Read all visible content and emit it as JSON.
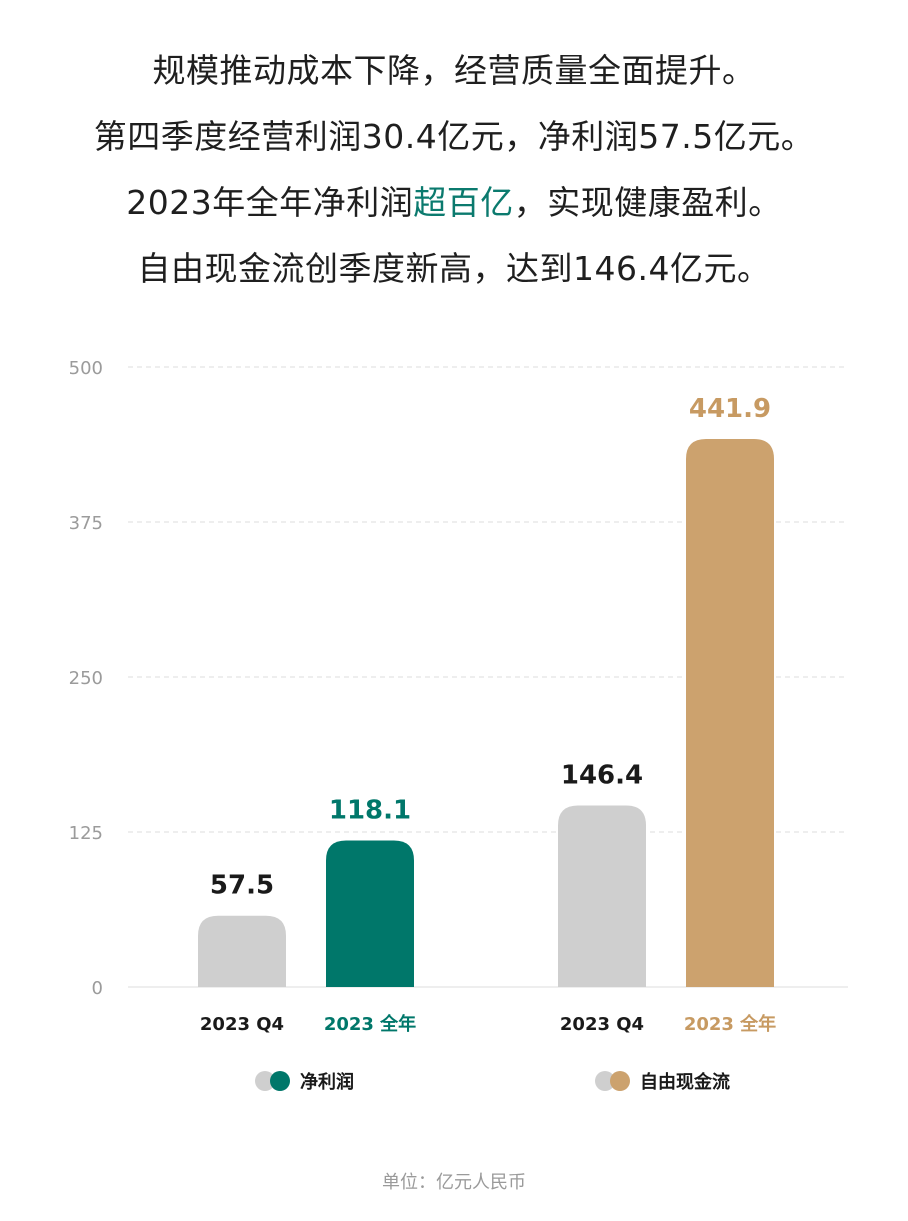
{
  "headline": {
    "line1": "规模推动成本下降，经营质量全面提升。",
    "line2": "第四季度经营利润30.4亿元，净利润57.5亿元。",
    "line3_pre": "2023年全年净利润",
    "line3_highlight": "超百亿",
    "line3_post": "，实现健康盈利。",
    "line4": "自由现金流创季度新高，达到146.4亿元。"
  },
  "colors": {
    "gray": "#cfcfcf",
    "teal": "#00776a",
    "gold": "#cca26e",
    "grid": "#e3e3e3",
    "axis_text": "#9b9b9b",
    "highlight": "#0b7a6e"
  },
  "chart_data": {
    "type": "bar",
    "ylim": [
      0,
      500
    ],
    "yticks": [
      "0",
      "125",
      "250",
      "375",
      "500"
    ],
    "grid": true,
    "legend_placement": "bottom",
    "groups": [
      {
        "legend": "净利润",
        "bars": [
          {
            "category": "2023 Q4",
            "value": 57.5,
            "label": "57.5",
            "color": "#cfcfcf",
            "label_color": "#1a1a1a",
            "cat_color": "#1a1a1a"
          },
          {
            "category": "2023 全年",
            "value": 118.1,
            "label": "118.1",
            "color": "#00776a",
            "label_color": "#00776a",
            "cat_color": "#00776a"
          }
        ],
        "legend_colors": [
          "#cfcfcf",
          "#00776a"
        ]
      },
      {
        "legend": "自由现金流",
        "bars": [
          {
            "category": "2023 Q4",
            "value": 146.4,
            "label": "146.4",
            "color": "#cfcfcf",
            "label_color": "#1a1a1a",
            "cat_color": "#1a1a1a"
          },
          {
            "category": "2023 全年",
            "value": 441.9,
            "label": "441.9",
            "color": "#cca26e",
            "label_color": "#c79a62",
            "cat_color": "#c79a62"
          }
        ],
        "legend_colors": [
          "#cfcfcf",
          "#cca26e"
        ]
      }
    ]
  },
  "footer": {
    "unit": "单位：亿元人民币"
  }
}
